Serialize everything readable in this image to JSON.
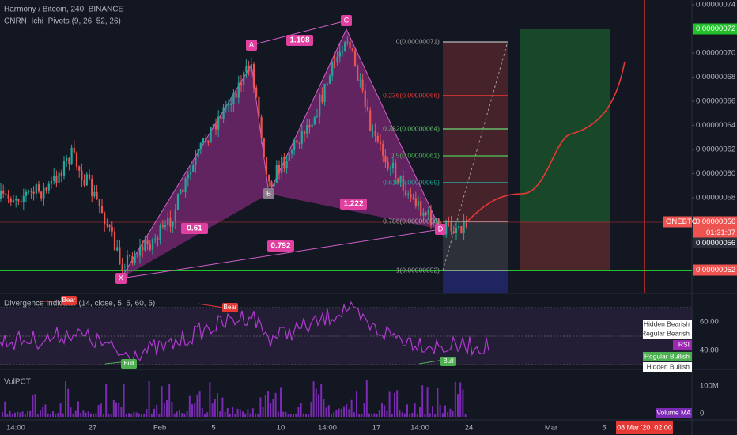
{
  "header": {
    "title": "Harmony / Bitcoin, 240, BINANCE",
    "indicator": "CNRN_Ichi_Pivots (9, 26, 52, 26)"
  },
  "price_axis": {
    "ticks": [
      {
        "value": 7.4e-07,
        "label": "0.00000074"
      },
      {
        "value": 7e-07,
        "label": "0.00000070"
      },
      {
        "value": 6.8e-07,
        "label": "0.00000068"
      },
      {
        "value": 6.6e-07,
        "label": "0.00000066"
      },
      {
        "value": 6.4e-07,
        "label": "0.00000064"
      },
      {
        "value": 6.2e-07,
        "label": "0.00000062"
      },
      {
        "value": 6e-07,
        "label": "0.00000060"
      },
      {
        "value": 5.8e-07,
        "label": "0.00000058"
      }
    ],
    "target": {
      "value": 7.2e-07,
      "label": "0.00000072"
    },
    "current": {
      "value": 5.6e-07,
      "label": "0.00000056",
      "symbol": "ONEBTC",
      "countdown": "01:31:07"
    },
    "close_label": "0.00000056",
    "stop": {
      "value": 5.2e-07,
      "label": "0.00000052"
    }
  },
  "pattern": {
    "points": [
      "X",
      "A",
      "B",
      "C",
      "D"
    ],
    "ratios": [
      "1.108",
      "0.61",
      "1.222",
      "0.792"
    ]
  },
  "fib_levels": [
    "0(0.00000071)",
    "0.236(0.00000066)",
    "0.382(0.00000064)",
    "0.5(0.00000061)",
    "0.618(0.00000059)",
    "0.786(0.00000056)",
    "1(0.00000052)"
  ],
  "rsi_pane": {
    "title": "Divergence Indicator (14, close, 5, 5, 60, 5)",
    "markers": [
      "Bear",
      "Bear",
      "Bull",
      "Bull"
    ],
    "legend": [
      "Hidden Bearish",
      "Regular Bearish",
      "RSI",
      "Regular Bullish",
      "Hidden Bullish"
    ],
    "ticks": [
      "60.00",
      "40.00"
    ]
  },
  "vol_pane": {
    "title": "VolPCT",
    "ticks": [
      "100M",
      "0"
    ],
    "legend": "Volume MA"
  },
  "time_axis": {
    "labels": [
      "14:00",
      "27",
      "Feb",
      "5",
      "10",
      "14:00",
      "17",
      "14:00",
      "24",
      "Mar",
      "5"
    ],
    "cursor": "08 Mar '20  02:00"
  }
}
